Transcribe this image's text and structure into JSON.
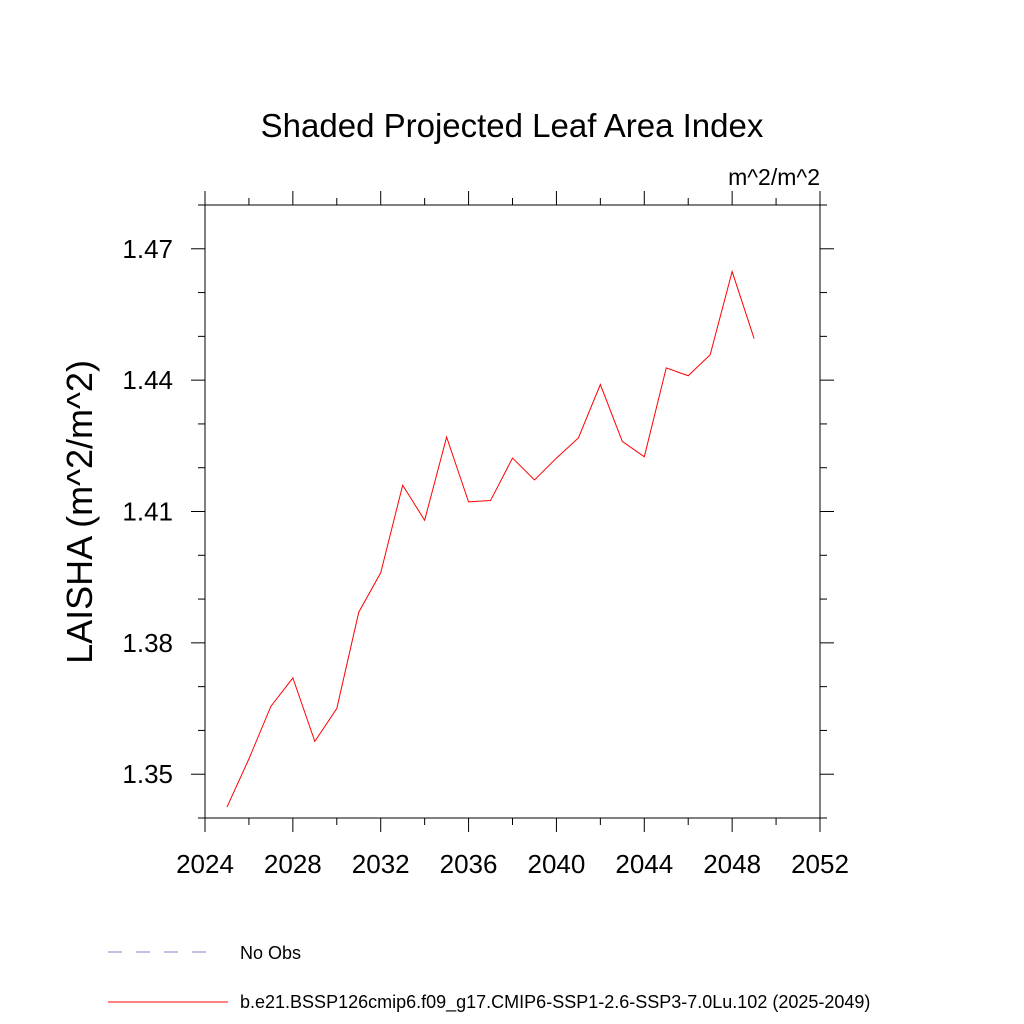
{
  "chart_data": {
    "type": "line",
    "title": "Shaded Projected Leaf Area Index",
    "units_label": "m^2/m^2",
    "ylabel": "LAISHA  (m^2/m^2)",
    "xlabel": "",
    "xlim": [
      2024,
      2052
    ],
    "ylim": [
      1.34,
      1.48
    ],
    "x_ticks": [
      2024,
      2028,
      2032,
      2036,
      2040,
      2044,
      2048,
      2052
    ],
    "x_tick_labels": [
      "2024",
      "2028",
      "2032",
      "2036",
      "2040",
      "2044",
      "2048",
      "2052"
    ],
    "y_ticks": [
      1.35,
      1.38,
      1.41,
      1.44,
      1.47
    ],
    "y_tick_labels": [
      "1.35",
      "1.38",
      "1.41",
      "1.44",
      "1.47"
    ],
    "grid": false,
    "legend_position": "bottom",
    "series": [
      {
        "name": "b.e21.BSSP126cmip6.f09_g17.CMIP6-SSP1-2.6-SSP3-7.0Lu.102 (2025-2049)",
        "color": "#ff0000",
        "style": "solid",
        "x": [
          2025,
          2026,
          2027,
          2028,
          2029,
          2030,
          2031,
          2032,
          2033,
          2034,
          2035,
          2036,
          2037,
          2038,
          2039,
          2040,
          2041,
          2042,
          2043,
          2044,
          2045,
          2046,
          2047,
          2048,
          2049
        ],
        "y": [
          1.3425,
          1.3535,
          1.3655,
          1.372,
          1.3575,
          1.365,
          1.387,
          1.396,
          1.416,
          1.408,
          1.427,
          1.4122,
          1.4125,
          1.4222,
          1.4172,
          1.4222,
          1.4268,
          1.439,
          1.426,
          1.4225,
          1.4428,
          1.441,
          1.4458,
          1.4648,
          1.4495
        ]
      }
    ],
    "legend": [
      {
        "label": "No Obs",
        "color": "#8a80c8",
        "style": "dashed"
      },
      {
        "label": "b.e21.BSSP126cmip6.f09_g17.CMIP6-SSP1-2.6-SSP3-7.0Lu.102 (2025-2049)",
        "color": "#ff0000",
        "style": "solid"
      }
    ]
  }
}
